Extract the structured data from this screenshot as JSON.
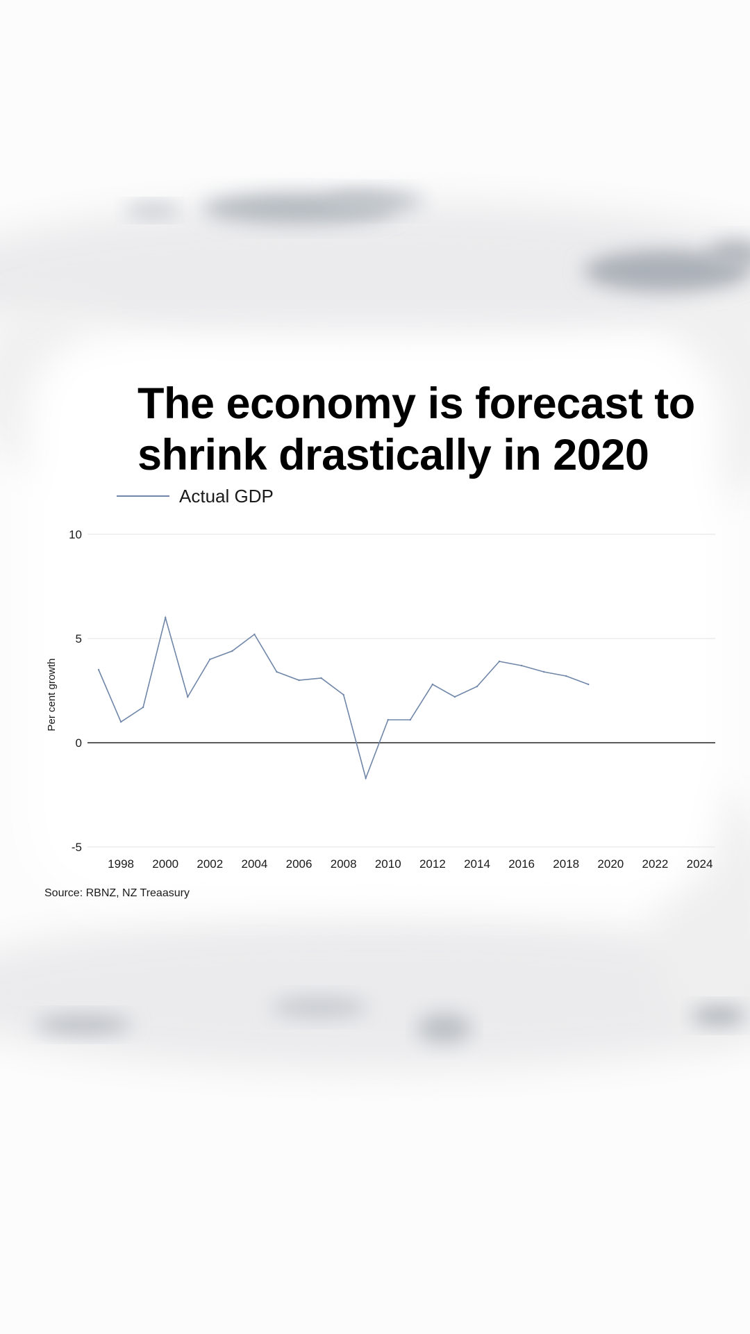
{
  "headline": {
    "line1": "The economy is forecast to",
    "line2": "shrink drastically in 2020"
  },
  "legend": {
    "label": "Actual GDP"
  },
  "source": "Source: RBNZ, NZ Treaasury",
  "colors": {
    "series": "#6f86a8",
    "zero_line": "#222222",
    "grid": "#e3e3e3"
  },
  "chart_data": {
    "type": "line",
    "title": "The economy is forecast to shrink drastically in 2020",
    "xlabel": "",
    "ylabel": "Per cent growth",
    "xlim": [
      1996.5,
      2024.7
    ],
    "ylim": [
      -5,
      10
    ],
    "yticks": [
      10,
      5,
      0,
      -5
    ],
    "xticks": [
      1998,
      2000,
      2002,
      2004,
      2006,
      2008,
      2010,
      2012,
      2014,
      2016,
      2018,
      2020,
      2022,
      2024
    ],
    "grid": true,
    "legend_position": "top-left",
    "series": [
      {
        "name": "Actual GDP",
        "x": [
          1997,
          1998,
          1999,
          2000,
          2001,
          2002,
          2003,
          2004,
          2005,
          2006,
          2007,
          2008,
          2009,
          2010,
          2011,
          2012,
          2013,
          2014,
          2015,
          2016,
          2017,
          2018,
          2019
        ],
        "y": [
          3.5,
          1.0,
          1.7,
          6.0,
          2.2,
          4.0,
          4.4,
          5.2,
          3.4,
          3.0,
          3.1,
          2.3,
          -1.7,
          1.1,
          1.1,
          2.8,
          2.2,
          2.7,
          3.9,
          3.7,
          3.4,
          3.2,
          2.8
        ]
      }
    ]
  }
}
